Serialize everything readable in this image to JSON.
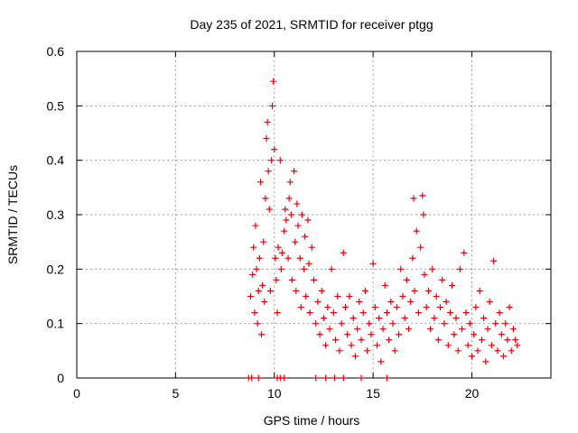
{
  "chart_data": {
    "type": "scatter",
    "title": "Day 235 of 2021, SRMTID for receiver ptgg",
    "xlabel": "GPS time / hours",
    "ylabel": "SRMTID / TECUs",
    "xlim": [
      0,
      24
    ],
    "ylim": [
      0,
      0.6
    ],
    "x_ticks": [
      0,
      5,
      10,
      15,
      20
    ],
    "y_ticks": [
      0,
      0.1,
      0.2,
      0.3,
      0.4,
      0.5,
      0.6
    ],
    "x_tick_labels": [
      "0",
      "5",
      "10",
      "15",
      "20"
    ],
    "y_tick_labels": [
      "0",
      "0.1",
      "0.2",
      "0.3",
      "0.4",
      "0.5",
      "0.6"
    ],
    "grid": true,
    "marker": "+",
    "color": "#e8000b",
    "series": [
      {
        "name": "SRMTID",
        "points": [
          [
            8.8,
            0.15
          ],
          [
            8.9,
            0.19
          ],
          [
            8.95,
            0.24
          ],
          [
            9.0,
            0.12
          ],
          [
            9.05,
            0.28
          ],
          [
            9.1,
            0.2
          ],
          [
            9.15,
            0.1
          ],
          [
            9.2,
            0.16
          ],
          [
            9.25,
            0.22
          ],
          [
            9.3,
            0.36
          ],
          [
            9.35,
            0.08
          ],
          [
            9.4,
            0.17
          ],
          [
            9.45,
            0.25
          ],
          [
            9.5,
            0.14
          ],
          [
            9.55,
            0.33
          ],
          [
            9.6,
            0.44
          ],
          [
            9.65,
            0.47
          ],
          [
            9.7,
            0.38
          ],
          [
            9.75,
            0.31
          ],
          [
            9.8,
            0.16
          ],
          [
            9.85,
            0.4
          ],
          [
            9.9,
            0.5
          ],
          [
            9.95,
            0.545
          ],
          [
            10.0,
            0.42
          ],
          [
            10.05,
            0.22
          ],
          [
            10.1,
            0.18
          ],
          [
            10.15,
            0.12
          ],
          [
            10.2,
            0.24
          ],
          [
            10.3,
            0.4
          ],
          [
            10.35,
            0.2
          ],
          [
            10.4,
            0.23
          ],
          [
            10.5,
            0.27
          ],
          [
            10.55,
            0.31
          ],
          [
            10.6,
            0.29
          ],
          [
            10.7,
            0.22
          ],
          [
            10.75,
            0.33
          ],
          [
            10.8,
            0.36
          ],
          [
            10.85,
            0.3
          ],
          [
            10.9,
            0.18
          ],
          [
            11.0,
            0.38
          ],
          [
            11.05,
            0.25
          ],
          [
            11.1,
            0.16
          ],
          [
            11.15,
            0.32
          ],
          [
            11.2,
            0.28
          ],
          [
            11.3,
            0.22
          ],
          [
            11.35,
            0.13
          ],
          [
            11.4,
            0.3
          ],
          [
            11.5,
            0.2
          ],
          [
            11.55,
            0.26
          ],
          [
            11.6,
            0.15
          ],
          [
            11.7,
            0.29
          ],
          [
            11.75,
            0.21
          ],
          [
            11.8,
            0.12
          ],
          [
            11.9,
            0.24
          ],
          [
            12.0,
            0.18
          ],
          [
            12.1,
            0.1
          ],
          [
            12.2,
            0.14
          ],
          [
            12.3,
            0.08
          ],
          [
            12.4,
            0.16
          ],
          [
            12.5,
            0.11
          ],
          [
            12.6,
            0.06
          ],
          [
            12.7,
            0.13
          ],
          [
            12.8,
            0.09
          ],
          [
            12.9,
            0.2
          ],
          [
            13.0,
            0.12
          ],
          [
            13.1,
            0.07
          ],
          [
            13.2,
            0.15
          ],
          [
            13.3,
            0.05
          ],
          [
            13.4,
            0.1
          ],
          [
            13.5,
            0.23
          ],
          [
            13.6,
            0.13
          ],
          [
            13.7,
            0.08
          ],
          [
            13.8,
            0.15
          ],
          [
            13.9,
            0.06
          ],
          [
            14.0,
            0.11
          ],
          [
            14.1,
            0.04
          ],
          [
            14.2,
            0.09
          ],
          [
            14.3,
            0.14
          ],
          [
            14.4,
            0.07
          ],
          [
            14.5,
            0.12
          ],
          [
            14.6,
            0.16
          ],
          [
            14.7,
            0.05
          ],
          [
            14.8,
            0.1
          ],
          [
            14.9,
            0.08
          ],
          [
            15.0,
            0.21
          ],
          [
            15.1,
            0.13
          ],
          [
            15.2,
            0.06
          ],
          [
            15.3,
            0.11
          ],
          [
            15.4,
            0.03
          ],
          [
            15.5,
            0.09
          ],
          [
            15.6,
            0.17
          ],
          [
            15.7,
            0.12
          ],
          [
            15.8,
            0.07
          ],
          [
            15.9,
            0.14
          ],
          [
            16.0,
            0.1
          ],
          [
            16.1,
            0.05
          ],
          [
            16.2,
            0.13
          ],
          [
            16.3,
            0.08
          ],
          [
            16.4,
            0.2
          ],
          [
            16.5,
            0.15
          ],
          [
            16.6,
            0.11
          ],
          [
            16.7,
            0.18
          ],
          [
            16.8,
            0.09
          ],
          [
            16.9,
            0.14
          ],
          [
            17.0,
            0.22
          ],
          [
            17.05,
            0.33
          ],
          [
            17.1,
            0.16
          ],
          [
            17.2,
            0.27
          ],
          [
            17.3,
            0.12
          ],
          [
            17.4,
            0.24
          ],
          [
            17.5,
            0.335
          ],
          [
            17.55,
            0.3
          ],
          [
            17.6,
            0.19
          ],
          [
            17.7,
            0.13
          ],
          [
            17.8,
            0.16
          ],
          [
            17.9,
            0.09
          ],
          [
            18.0,
            0.2
          ],
          [
            18.1,
            0.11
          ],
          [
            18.2,
            0.15
          ],
          [
            18.3,
            0.07
          ],
          [
            18.4,
            0.13
          ],
          [
            18.5,
            0.18
          ],
          [
            18.6,
            0.1
          ],
          [
            18.7,
            0.14
          ],
          [
            18.8,
            0.06
          ],
          [
            18.9,
            0.12
          ],
          [
            19.0,
            0.17
          ],
          [
            19.1,
            0.08
          ],
          [
            19.2,
            0.11
          ],
          [
            19.3,
            0.05
          ],
          [
            19.4,
            0.2
          ],
          [
            19.5,
            0.09
          ],
          [
            19.6,
            0.23
          ],
          [
            19.7,
            0.12
          ],
          [
            19.8,
            0.06
          ],
          [
            19.9,
            0.1
          ],
          [
            20.0,
            0.04
          ],
          [
            20.1,
            0.08
          ],
          [
            20.2,
            0.13
          ],
          [
            20.3,
            0.05
          ],
          [
            20.4,
            0.16
          ],
          [
            20.5,
            0.07
          ],
          [
            20.6,
            0.11
          ],
          [
            20.7,
            0.03
          ],
          [
            20.8,
            0.09
          ],
          [
            20.9,
            0.14
          ],
          [
            21.0,
            0.06
          ],
          [
            21.1,
            0.215
          ],
          [
            21.2,
            0.1
          ],
          [
            21.3,
            0.05
          ],
          [
            21.4,
            0.12
          ],
          [
            21.5,
            0.08
          ],
          [
            21.6,
            0.04
          ],
          [
            21.7,
            0.1
          ],
          [
            21.8,
            0.07
          ],
          [
            21.9,
            0.13
          ],
          [
            22.0,
            0.05
          ],
          [
            22.1,
            0.09
          ],
          [
            22.2,
            0.07
          ],
          [
            22.3,
            0.06
          ],
          [
            8.7,
            0.0
          ],
          [
            8.85,
            0.0
          ],
          [
            9.2,
            0.0
          ],
          [
            10.15,
            0.0
          ],
          [
            10.3,
            0.0
          ],
          [
            10.5,
            0.0
          ],
          [
            12.1,
            0.0
          ],
          [
            12.6,
            0.0
          ],
          [
            13.05,
            0.0
          ],
          [
            13.5,
            0.0
          ],
          [
            14.4,
            0.0
          ],
          [
            15.7,
            0.0
          ]
        ]
      }
    ]
  }
}
